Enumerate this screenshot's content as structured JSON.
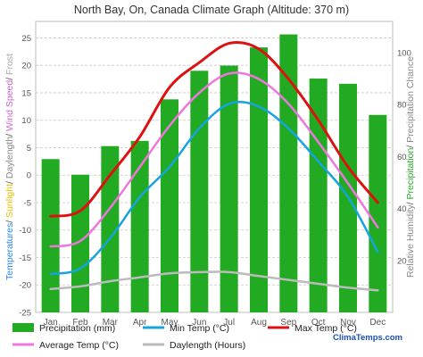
{
  "chart_data": {
    "type": "bar",
    "title": "North Bay, On, Canada Climate Graph (Altitude: 370 m)",
    "categories": [
      "Jan",
      "Feb",
      "Mar",
      "Apr",
      "May",
      "Jun",
      "Jul",
      "Aug",
      "Sep",
      "Oct",
      "Nov",
      "Dec"
    ],
    "bars": {
      "name": "Precipitation (mm)",
      "values": [
        59,
        53,
        64,
        66,
        82,
        93,
        95,
        102,
        107,
        90,
        88,
        76
      ],
      "color": "#22aa22"
    },
    "lines": [
      {
        "name": "Min Temp (°C)",
        "color": "#16a4de",
        "axis": "left",
        "values": [
          -18,
          -17,
          -11.5,
          -4,
          1.5,
          8.5,
          13,
          12.5,
          8.5,
          2.5,
          -4,
          -14
        ]
      },
      {
        "name": "Max Temp (°C)",
        "color": "#dd1111",
        "axis": "left",
        "values": [
          -7.5,
          -6.5,
          0,
          7,
          16,
          20.5,
          24,
          23,
          17.5,
          10,
          1.5,
          -5
        ]
      },
      {
        "name": "Average Temp (°C)",
        "color": "#ee77dd",
        "axis": "left",
        "values": [
          -13,
          -12,
          -6,
          1.5,
          9,
          15,
          18.5,
          17.5,
          13,
          6,
          -1.5,
          -9.5
        ]
      },
      {
        "name": "Daylength (Hours)",
        "color": "#bbbbbb",
        "axis": "right",
        "values": [
          9,
          10,
          12,
          13.5,
          15,
          15.5,
          15.5,
          14,
          12.5,
          11,
          9.5,
          8.5
        ]
      }
    ],
    "y_left": {
      "range": [
        -25,
        28
      ],
      "ticks": [
        -25,
        -20,
        -15,
        -10,
        -5,
        0,
        5,
        10,
        15,
        20,
        25
      ],
      "label_parts": [
        {
          "text": "Temperatures",
          "color": "#2a88ee"
        },
        {
          "text": "/ ",
          "color": "#555555"
        },
        {
          "text": "Sunlight",
          "color": "#e8c000"
        },
        {
          "text": "/ ",
          "color": "#555555"
        },
        {
          "text": "Daylength",
          "color": "#888888"
        },
        {
          "text": "/ ",
          "color": "#555555"
        },
        {
          "text": "Wind Speed",
          "color": "#cc66cc"
        },
        {
          "text": "/ ",
          "color": "#555555"
        },
        {
          "text": "Frost",
          "color": "#aaaaaa"
        }
      ]
    },
    "y_right": {
      "range": [
        0,
        112
      ],
      "ticks": [
        20,
        40,
        60,
        80,
        100
      ],
      "label_parts": [
        {
          "text": "Relative Humidity",
          "color": "#888888"
        },
        {
          "text": "/ ",
          "color": "#555555"
        },
        {
          "text": "Precipitation",
          "color": "#22aa22"
        },
        {
          "text": "/ ",
          "color": "#555555"
        },
        {
          "text": "Precipitation Chance",
          "color": "#888888"
        }
      ]
    },
    "legend_placement": "bottom",
    "grid": true,
    "brand": "ClimaTemps.com"
  }
}
